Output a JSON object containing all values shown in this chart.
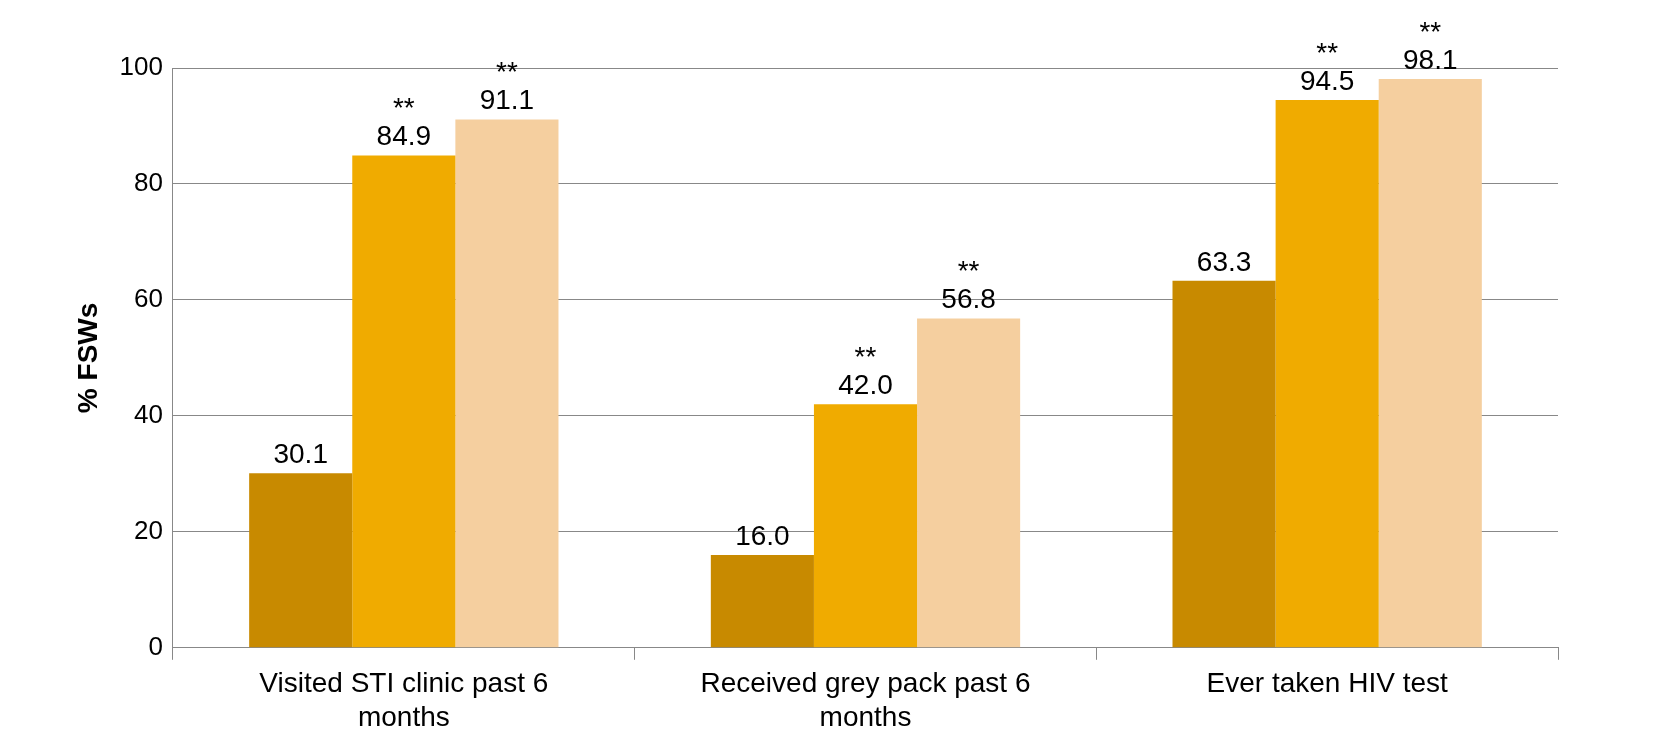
{
  "chart_data": {
    "type": "bar",
    "ylabel": "% FSWs",
    "categories": [
      "Visited STI clinic past 6 months",
      "Received grey pack past 6 months",
      "Ever taken HIV test"
    ],
    "series": [
      {
        "color": "#c88a00",
        "values": [
          30.1,
          16.0,
          63.3
        ],
        "value_labels": [
          "30.1",
          "16.0",
          "63.3"
        ]
      },
      {
        "color": "#f0ab00",
        "values": [
          84.9,
          42.0,
          94.5
        ],
        "value_labels": [
          "84.9",
          "42.0",
          "94.5"
        ]
      },
      {
        "color": "#f5cf9f",
        "values": [
          91.1,
          56.8,
          98.1
        ],
        "value_labels": [
          "91.1",
          "56.8",
          "98.1"
        ]
      }
    ],
    "ylim": [
      0,
      100
    ],
    "yticks": [
      0,
      20,
      40,
      60,
      80,
      100
    ],
    "grid": "y",
    "legend": false,
    "annotations": [
      {
        "text": "**",
        "x": "Visited STI clinic past 6 months",
        "y": 84.9
      },
      "**",
      {
        "text": "**",
        "x": "Received grey pack past 6 months",
        "y": 42.0
      },
      "**",
      {
        "text": "**",
        "x": "Ever taken HIV test",
        "y": 94.5
      },
      "**"
    ]
  }
}
